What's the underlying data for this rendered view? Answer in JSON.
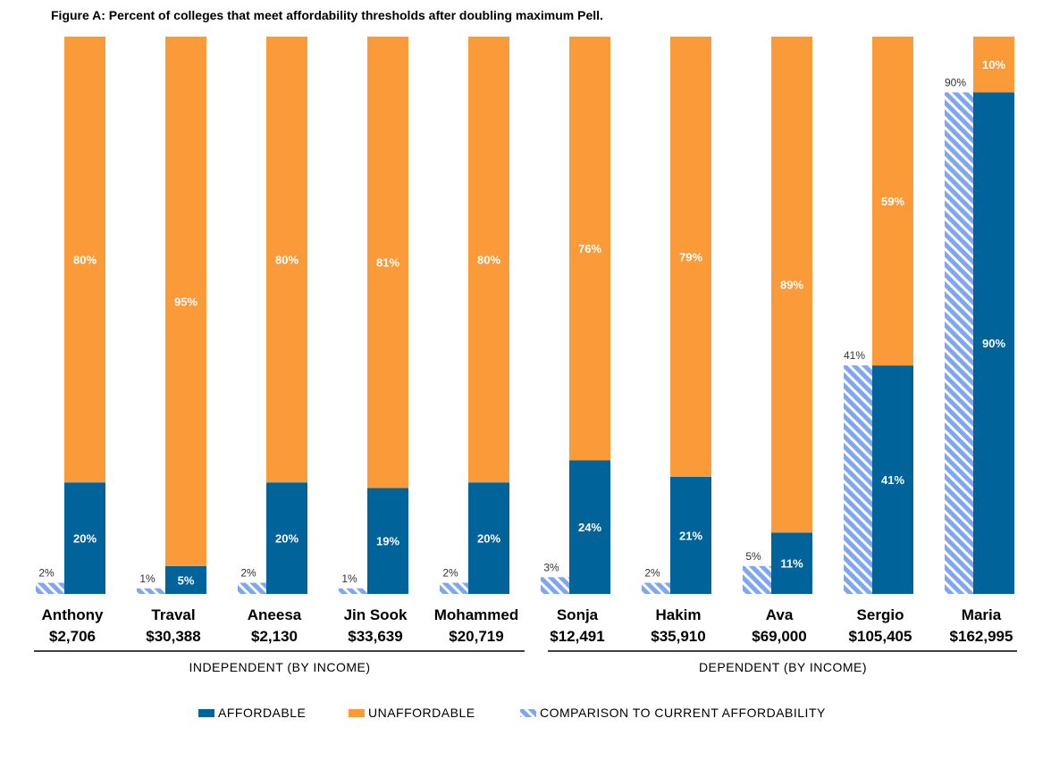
{
  "chart_data": {
    "type": "bar",
    "title": "Figure A: Percent of colleges that meet affordability thresholds after doubling maximum Pell.",
    "ylim": [
      0,
      100
    ],
    "grid": false,
    "legend_position": "bottom",
    "colors": {
      "affordable": "#00639a",
      "unaffordable": "#fa9a38",
      "comparison": "#7fa6f0"
    },
    "categories": [
      {
        "name": "Anthony",
        "income": "$2,706",
        "group": "independent"
      },
      {
        "name": "Traval",
        "income": "$30,388",
        "group": "independent"
      },
      {
        "name": "Aneesa",
        "income": "$2,130",
        "group": "independent"
      },
      {
        "name": "Jin Sook",
        "income": "$33,639",
        "group": "independent"
      },
      {
        "name": "Mohammed",
        "income": "$20,719",
        "group": "independent"
      },
      {
        "name": "Sonja",
        "income": "$12,491",
        "group": "dependent"
      },
      {
        "name": "Hakim",
        "income": "$35,910",
        "group": "dependent"
      },
      {
        "name": "Ava",
        "income": "$69,000",
        "group": "dependent"
      },
      {
        "name": "Sergio",
        "income": "$105,405",
        "group": "dependent"
      },
      {
        "name": "Maria",
        "income": "$162,995",
        "group": "dependent"
      }
    ],
    "series": [
      {
        "name": "AFFORDABLE",
        "values": [
          20,
          5,
          20,
          19,
          20,
          24,
          21,
          11,
          41,
          90
        ],
        "labels": [
          "20%",
          "5%",
          "20%",
          "19%",
          "20%",
          "24%",
          "21%",
          "11%",
          "41%",
          "90%"
        ]
      },
      {
        "name": "UNAFFORDABLE",
        "values": [
          80,
          95,
          80,
          81,
          80,
          76,
          79,
          89,
          59,
          10
        ],
        "labels": [
          "80%",
          "95%",
          "80%",
          "81%",
          "80%",
          "76%",
          "79%",
          "89%",
          "59%",
          "10%"
        ]
      },
      {
        "name": "COMPARISON TO CURRENT AFFORDABILITY",
        "values": [
          2,
          1,
          2,
          1,
          2,
          3,
          2,
          5,
          41,
          90
        ],
        "labels": [
          "2%",
          "1%",
          "2%",
          "1%",
          "2%",
          "3%",
          "2%",
          "5%",
          "41%",
          "90%"
        ]
      }
    ],
    "groups": [
      {
        "key": "independent",
        "label": "INDEPENDENT  (BY INCOME)"
      },
      {
        "key": "dependent",
        "label": "DEPENDENT  (BY INCOME)"
      }
    ],
    "legend": [
      {
        "key": "affordable",
        "label": "AFFORDABLE"
      },
      {
        "key": "unaffordable",
        "label": "UNAFFORDABLE"
      },
      {
        "key": "comparison",
        "label": "COMPARISON  TO  CURRENT  AFFORDABILITY"
      }
    ]
  }
}
